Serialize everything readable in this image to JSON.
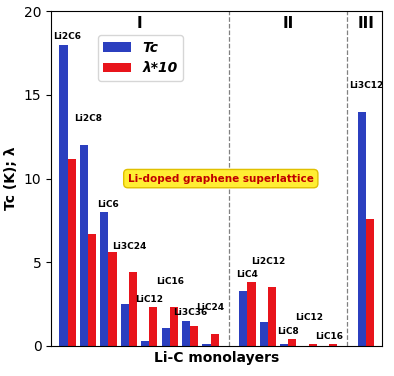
{
  "chart_data": {
    "type": "bar",
    "y_label": "Tc (K); λ",
    "x_label": "Li-C monolayers",
    "categories": [
      "Li2C6",
      "Li2C8",
      "LiC6",
      "Li3C24",
      "LiC12",
      "LiC16",
      "Li3C36",
      "LiC24",
      "LiC4",
      "Li2C12",
      "LiC8",
      "LiC12",
      "LiC16",
      "Li3C12"
    ],
    "series": [
      {
        "name": "Tc",
        "color": "#2b3fbf",
        "values": [
          18,
          12,
          8,
          2.5,
          0.3,
          1.1,
          1.5,
          0.1,
          3.3,
          1.4,
          0.1,
          0,
          0,
          14
        ]
      },
      {
        "name": "λ*10",
        "color": "#e8141b",
        "values": [
          11.2,
          6.7,
          5.6,
          4.4,
          2.3,
          2.3,
          1.2,
          0.7,
          3.8,
          3.5,
          0.4,
          0.1,
          0.1,
          7.6
        ]
      }
    ],
    "regions": [
      {
        "label": "I",
        "count": 8
      },
      {
        "label": "II",
        "count": 5
      },
      {
        "label": "III",
        "count": 1
      }
    ],
    "annotations": [
      "Li-doped graphene superlattice"
    ],
    "ylim": [
      0,
      20
    ],
    "yticks": [
      0,
      5,
      10,
      15,
      20
    ],
    "legend": "upper left",
    "tick_labels": "y"
  }
}
